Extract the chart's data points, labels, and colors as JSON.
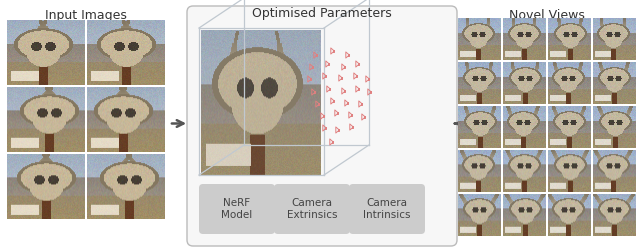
{
  "title_left": "Input Images",
  "title_center": "Optimised Parameters",
  "title_right": "Novel Views",
  "label_nerf": "NeRF\nModel",
  "label_extrinsics": "Camera\nExtrinsics",
  "label_intrinsics": "Camera\nIntrinsics",
  "figure_bg": "#ffffff",
  "arrow_color": "#555555",
  "title_fontsize": 9.0,
  "label_fontsize": 7.5,
  "cam_color": "#e08080",
  "box_wire_color": "#c0c8d0",
  "center_box_edge": "#bbbbbb",
  "center_box_face": "#f7f7f7",
  "label_box_face": "#cccccc",
  "label_text_color": "#444444"
}
